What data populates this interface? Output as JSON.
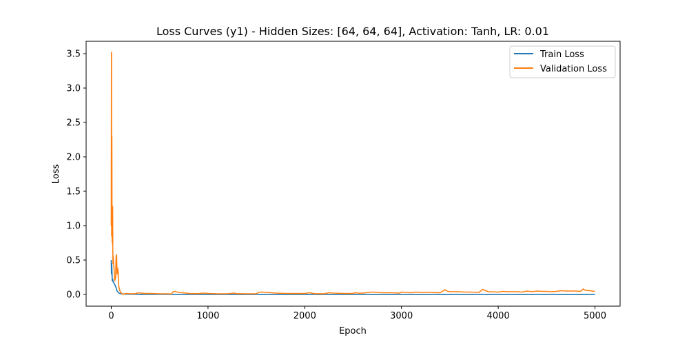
{
  "chart_data": {
    "type": "line",
    "title": "Loss Curves (y1) - Hidden Sizes: [64, 64, 64], Activation: Tanh, LR: 0.01",
    "xlabel": "Epoch",
    "ylabel": "Loss",
    "xlim": [
      -260,
      5260
    ],
    "ylim": [
      -0.17,
      3.68
    ],
    "xticks": [
      0,
      1000,
      2000,
      3000,
      4000,
      5000
    ],
    "xtick_labels": [
      "0",
      "1000",
      "2000",
      "3000",
      "4000",
      "5000"
    ],
    "yticks": [
      0.0,
      0.5,
      1.0,
      1.5,
      2.0,
      2.5,
      3.0,
      3.5
    ],
    "ytick_labels": [
      "0.0",
      "0.5",
      "1.0",
      "1.5",
      "2.0",
      "2.5",
      "3.0",
      "3.5"
    ],
    "grid": false,
    "legend_position": "top-right",
    "series": [
      {
        "name": "Train Loss",
        "color": "#1f77b4",
        "x": [
          0,
          2,
          5,
          10,
          15,
          20,
          30,
          40,
          50,
          60,
          80,
          100,
          150,
          200,
          300,
          500,
          1000,
          1500,
          2000,
          2500,
          3000,
          3500,
          4000,
          4500,
          5000
        ],
        "y": [
          0.5,
          0.3,
          0.45,
          0.2,
          0.22,
          0.18,
          0.16,
          0.13,
          0.1,
          0.05,
          0.02,
          0.01,
          0.005,
          0.003,
          0.002,
          0.002,
          0.001,
          0.001,
          0.001,
          0.001,
          0.001,
          0.001,
          0.001,
          0.001,
          0.001
        ]
      },
      {
        "name": "Validation Loss",
        "color": "#ff7f0e",
        "x": [
          0,
          2,
          4,
          6,
          8,
          10,
          12,
          14,
          16,
          18,
          20,
          25,
          30,
          35,
          40,
          45,
          50,
          55,
          60,
          65,
          70,
          75,
          80,
          90,
          100,
          110,
          120,
          130,
          150,
          200,
          250,
          280,
          300,
          350,
          400,
          500,
          600,
          620,
          640,
          660,
          680,
          700,
          800,
          900,
          950,
          1000,
          1100,
          1200,
          1270,
          1300,
          1400,
          1500,
          1520,
          1550,
          1600,
          1700,
          1800,
          1900,
          2000,
          2050,
          2100,
          2200,
          2250,
          2300,
          2400,
          2500,
          2520,
          2550,
          2600,
          2700,
          2800,
          2900,
          2980,
          3000,
          3100,
          3150,
          3200,
          3300,
          3400,
          3450,
          3470,
          3500,
          3600,
          3650,
          3700,
          3800,
          3840,
          3860,
          3900,
          4000,
          4050,
          4100,
          4200,
          4250,
          4300,
          4350,
          4400,
          4450,
          4500,
          4550,
          4600,
          4650,
          4700,
          4750,
          4800,
          4850,
          4880,
          4900,
          4950,
          5000
        ],
        "y": [
          1.0,
          3.52,
          0.85,
          2.3,
          0.9,
          0.75,
          1.1,
          1.28,
          0.6,
          0.45,
          0.55,
          0.45,
          0.35,
          0.2,
          0.22,
          0.25,
          0.55,
          0.58,
          0.3,
          0.38,
          0.35,
          0.15,
          0.1,
          0.05,
          0.03,
          0.01,
          0.0,
          0.005,
          0.015,
          0.01,
          0.012,
          0.025,
          0.02,
          0.015,
          0.015,
          0.01,
          0.01,
          0.005,
          0.04,
          0.045,
          0.035,
          0.03,
          0.015,
          0.012,
          0.02,
          0.015,
          0.01,
          0.01,
          0.02,
          0.012,
          0.01,
          0.01,
          0.03,
          0.035,
          0.03,
          0.02,
          0.015,
          0.015,
          0.015,
          0.025,
          0.012,
          0.01,
          0.025,
          0.02,
          0.015,
          0.015,
          0.025,
          0.02,
          0.02,
          0.035,
          0.025,
          0.025,
          0.02,
          0.035,
          0.025,
          0.035,
          0.03,
          0.03,
          0.025,
          0.07,
          0.05,
          0.04,
          0.04,
          0.035,
          0.035,
          0.03,
          0.075,
          0.06,
          0.04,
          0.035,
          0.045,
          0.04,
          0.04,
          0.035,
          0.05,
          0.04,
          0.05,
          0.045,
          0.045,
          0.04,
          0.045,
          0.055,
          0.05,
          0.05,
          0.05,
          0.045,
          0.08,
          0.06,
          0.055,
          0.045
        ]
      }
    ]
  }
}
